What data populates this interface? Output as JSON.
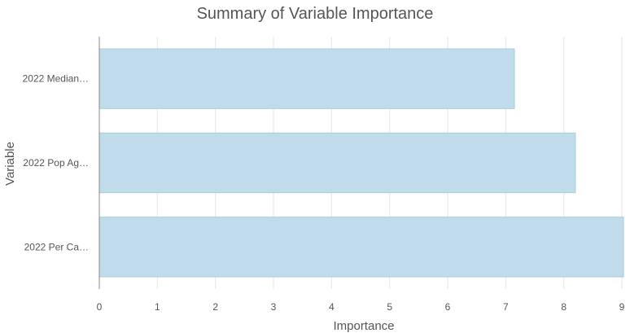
{
  "chart_data": {
    "type": "bar",
    "orientation": "horizontal",
    "title": "Summary of Variable Importance",
    "xlabel": "Importance",
    "ylabel": "Variable",
    "categories": [
      "2022 Median…",
      "2022 Pop Ag…",
      "2022 Per Ca…"
    ],
    "values": [
      7.15,
      8.2,
      9.05
    ],
    "xlim": [
      0,
      9
    ],
    "xticks": [
      0,
      1,
      2,
      3,
      4,
      5,
      6,
      7,
      8,
      9
    ],
    "grid": true,
    "bar_fill": "#c0dcea",
    "bar_stroke": "#a7cde0"
  }
}
